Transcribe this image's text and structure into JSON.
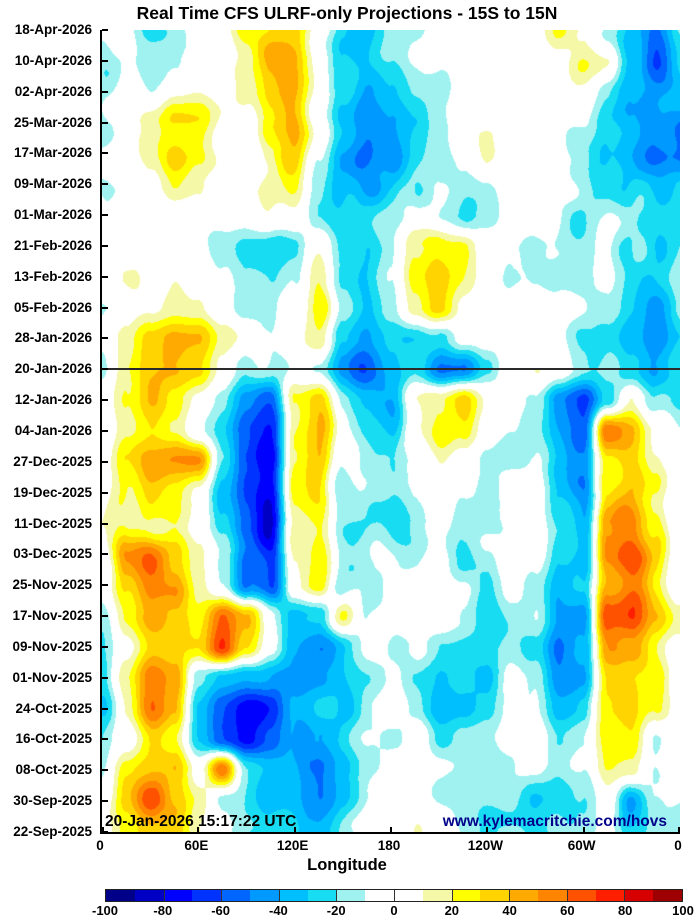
{
  "title": "Real Time CFS ULRF-only Projections - 15S to 15N",
  "annotations": {
    "timestamp": "20-Jan-2026 15:17:22 UTC",
    "watermark": "www.kylemacritchie.com/hovs"
  },
  "colors": {
    "axis": "#000000",
    "divider": "#2a2a2a",
    "watermark_text": "#00008b"
  },
  "chart_data": {
    "type": "heatmap",
    "title": "Real Time CFS ULRF-only Projections - 15S to 15N",
    "xlabel": "Longitude",
    "x_ticks": [
      "0",
      "60E",
      "120E",
      "180",
      "120W",
      "60W",
      "0"
    ],
    "y_ticks": [
      "18-Apr-2026",
      "10-Apr-2026",
      "02-Apr-2026",
      "25-Mar-2026",
      "17-Mar-2026",
      "09-Mar-2026",
      "01-Mar-2026",
      "21-Feb-2026",
      "13-Feb-2026",
      "05-Feb-2026",
      "28-Jan-2026",
      "20-Jan-2026",
      "12-Jan-2026",
      "04-Jan-2026",
      "27-Dec-2025",
      "19-Dec-2025",
      "11-Dec-2025",
      "03-Dec-2025",
      "25-Nov-2025",
      "17-Nov-2025",
      "09-Nov-2025",
      "01-Nov-2025",
      "24-Oct-2025",
      "16-Oct-2025",
      "08-Oct-2025",
      "30-Sep-2025",
      "22-Sep-2025"
    ],
    "forecast_divider_date": "20-Jan-2026",
    "value_range": [
      -100,
      100
    ],
    "colorbar_tick_labels": [
      "-100",
      "-80",
      "-60",
      "-40",
      "-20",
      "0",
      "20",
      "40",
      "60",
      "80",
      "100"
    ],
    "colormap": [
      "#000089",
      "#0000c4",
      "#0000ff",
      "#0033ff",
      "#0066ff",
      "#0099ff",
      "#00bfff",
      "#17dcf2",
      "#9ff2ef",
      "#ffffff",
      "#ffffff",
      "#f5f8a6",
      "#ffff00",
      "#ffd400",
      "#ffaa00",
      "#ff8400",
      "#ff5200",
      "#ff1e00",
      "#d60000",
      "#9e0000"
    ],
    "grid_lon_deg": [
      0,
      15,
      30,
      45,
      60,
      75,
      90,
      105,
      120,
      135,
      150,
      165,
      180,
      195,
      210,
      225,
      240,
      255,
      270,
      285,
      300,
      315,
      330,
      345,
      360
    ],
    "grid": [
      [
        -20,
        -10,
        -25,
        -15,
        0,
        5,
        25,
        35,
        30,
        -5,
        -30,
        -45,
        -30,
        -28,
        -15,
        0,
        5,
        0,
        10,
        30,
        15,
        -10,
        -30,
        -50,
        -25
      ],
      [
        -22,
        -15,
        -18,
        -5,
        5,
        5,
        15,
        42,
        38,
        5,
        -25,
        -38,
        -28,
        -20,
        -10,
        -5,
        0,
        5,
        0,
        10,
        28,
        20,
        -25,
        -55,
        -28
      ],
      [
        -12,
        -5,
        -8,
        5,
        8,
        0,
        12,
        38,
        40,
        8,
        -25,
        -45,
        -32,
        -22,
        -15,
        -5,
        2,
        0,
        0,
        5,
        8,
        -10,
        -28,
        -38,
        -35
      ],
      [
        -10,
        0,
        15,
        28,
        25,
        5,
        0,
        30,
        40,
        0,
        -35,
        -52,
        -40,
        -30,
        -12,
        0,
        5,
        8,
        0,
        0,
        0,
        -20,
        -30,
        -42,
        -50
      ],
      [
        -8,
        5,
        20,
        30,
        20,
        0,
        -5,
        20,
        35,
        -5,
        -40,
        -55,
        -45,
        -28,
        -10,
        0,
        8,
        10,
        5,
        0,
        -10,
        -25,
        -35,
        -48,
        -45
      ],
      [
        -15,
        -5,
        10,
        18,
        8,
        -5,
        -10,
        10,
        25,
        -10,
        -35,
        -45,
        -38,
        -20,
        -8,
        -5,
        0,
        5,
        0,
        -5,
        -15,
        -20,
        -30,
        -35,
        -30
      ],
      [
        -10,
        -8,
        0,
        5,
        0,
        -8,
        -12,
        0,
        10,
        -15,
        -25,
        -30,
        -25,
        -15,
        -10,
        -8,
        -5,
        0,
        -5,
        -10,
        -18,
        -15,
        -25,
        -30,
        -25
      ],
      [
        -8,
        -5,
        5,
        0,
        -5,
        -15,
        -28,
        -30,
        -20,
        10,
        -20,
        -28,
        -15,
        15,
        30,
        25,
        10,
        0,
        -10,
        -15,
        -20,
        -10,
        -28,
        -35,
        -22
      ],
      [
        -5,
        0,
        8,
        5,
        0,
        -10,
        -30,
        -32,
        -15,
        25,
        -15,
        -30,
        -10,
        25,
        40,
        30,
        15,
        5,
        -8,
        -10,
        -15,
        -8,
        -25,
        -30,
        -18
      ],
      [
        -10,
        -5,
        5,
        10,
        5,
        -5,
        -18,
        -20,
        0,
        30,
        -20,
        -38,
        -20,
        10,
        35,
        20,
        10,
        8,
        0,
        -5,
        -12,
        -15,
        -30,
        -42,
        -25
      ],
      [
        -15,
        10,
        35,
        45,
        30,
        5,
        -10,
        -15,
        5,
        20,
        -30,
        -48,
        -35,
        -40,
        -20,
        5,
        15,
        10,
        5,
        0,
        -15,
        -20,
        -35,
        -45,
        -30
      ],
      [
        -18,
        15,
        30,
        38,
        25,
        0,
        -15,
        -20,
        -5,
        -15,
        -45,
        -62,
        -40,
        -25,
        -45,
        -38,
        -10,
        5,
        10,
        -5,
        -20,
        -15,
        -30,
        -48,
        -35
      ],
      [
        -10,
        20,
        28,
        15,
        -10,
        -20,
        -40,
        -55,
        15,
        28,
        -20,
        -30,
        -35,
        15,
        30,
        35,
        10,
        -10,
        -20,
        -60,
        -70,
        -25,
        15,
        -18,
        -25
      ],
      [
        -12,
        15,
        20,
        5,
        -15,
        -30,
        -50,
        -60,
        20,
        30,
        -15,
        -25,
        -20,
        20,
        35,
        20,
        0,
        -15,
        -25,
        -55,
        -65,
        55,
        45,
        10,
        -12
      ],
      [
        -8,
        25,
        40,
        38,
        45,
        -20,
        -55,
        -70,
        15,
        30,
        -20,
        -20,
        -15,
        5,
        15,
        0,
        -15,
        -20,
        -15,
        -50,
        -55,
        20,
        35,
        15,
        -10
      ],
      [
        -10,
        20,
        30,
        25,
        10,
        -25,
        -60,
        -72,
        20,
        25,
        -25,
        -15,
        -10,
        0,
        10,
        -10,
        -20,
        -15,
        -10,
        -45,
        -60,
        25,
        40,
        20,
        -8
      ],
      [
        -5,
        15,
        25,
        30,
        15,
        -15,
        -55,
        -75,
        10,
        20,
        -20,
        -20,
        -15,
        -10,
        5,
        -15,
        -25,
        -10,
        -15,
        -40,
        -55,
        45,
        55,
        25,
        -5
      ],
      [
        -8,
        45,
        62,
        48,
        25,
        0,
        -45,
        -68,
        15,
        25,
        -15,
        -10,
        -5,
        -15,
        0,
        -20,
        -15,
        -5,
        -10,
        -45,
        -50,
        50,
        65,
        35,
        0
      ],
      [
        -12,
        35,
        55,
        45,
        20,
        -5,
        -50,
        -70,
        10,
        30,
        -20,
        -15,
        -10,
        -10,
        -5,
        -15,
        -20,
        -10,
        -20,
        -50,
        -45,
        30,
        45,
        20,
        -5
      ],
      [
        -10,
        25,
        40,
        30,
        15,
        50,
        30,
        -20,
        -35,
        -30,
        20,
        -20,
        -15,
        -5,
        -10,
        -20,
        -25,
        -15,
        -15,
        -55,
        -60,
        55,
        60,
        30,
        5
      ],
      [
        -15,
        10,
        25,
        20,
        20,
        55,
        25,
        -10,
        -40,
        -45,
        -30,
        -15,
        -20,
        -25,
        -30,
        -20,
        -25,
        -20,
        -25,
        -60,
        -50,
        40,
        30,
        10,
        -10
      ],
      [
        -20,
        25,
        55,
        30,
        -25,
        -35,
        -40,
        -45,
        -40,
        -35,
        -25,
        -20,
        -15,
        -30,
        -35,
        -25,
        -30,
        -15,
        -20,
        -55,
        -45,
        25,
        20,
        15,
        -15
      ],
      [
        -15,
        20,
        50,
        25,
        -50,
        -65,
        -75,
        -60,
        -35,
        -25,
        -30,
        -15,
        -10,
        -20,
        -40,
        -35,
        -25,
        -20,
        -15,
        -45,
        -35,
        15,
        25,
        10,
        -10
      ],
      [
        -10,
        10,
        20,
        10,
        -40,
        -60,
        -70,
        -55,
        -40,
        -30,
        -20,
        -10,
        -15,
        -15,
        -30,
        -25,
        -20,
        -15,
        -10,
        -35,
        -25,
        10,
        20,
        -20,
        -8
      ],
      [
        -8,
        30,
        35,
        25,
        -10,
        50,
        -20,
        -30,
        -35,
        -45,
        -30,
        -15,
        -10,
        -10,
        -15,
        -20,
        -15,
        -10,
        -15,
        -25,
        -20,
        15,
        10,
        -15,
        -5
      ],
      [
        -5,
        25,
        55,
        30,
        10,
        -15,
        -25,
        -35,
        -40,
        -50,
        -35,
        -20,
        -10,
        -5,
        -10,
        -15,
        -20,
        -15,
        -25,
        -20,
        -15,
        10,
        -40,
        -10,
        -5
      ],
      [
        -10,
        15,
        30,
        20,
        5,
        -10,
        -20,
        -30,
        -35,
        -40,
        -25,
        -15,
        -5,
        0,
        -5,
        -10,
        -15,
        -10,
        -20,
        -15,
        -10,
        5,
        -20,
        -10,
        -8
      ]
    ],
    "noise": {
      "seed": 12,
      "octaves": [
        {
          "sx": 0.013,
          "sy": 0.01,
          "amp": 15
        },
        {
          "sx": 0.045,
          "sy": 0.035,
          "amp": 8
        }
      ]
    },
    "legend_position": "bottom",
    "grid_lines": false
  }
}
